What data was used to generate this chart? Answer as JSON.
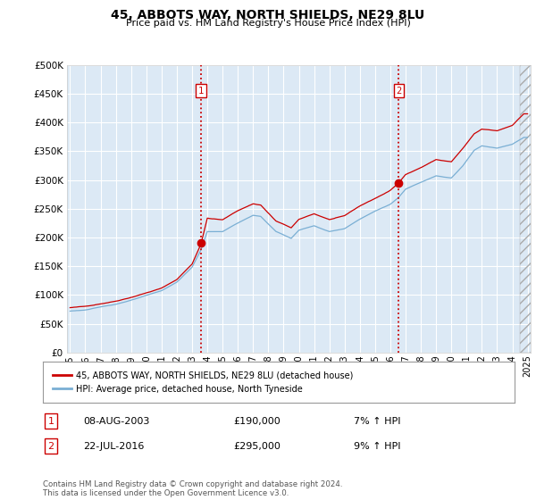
{
  "title": "45, ABBOTS WAY, NORTH SHIELDS, NE29 8LU",
  "subtitle": "Price paid vs. HM Land Registry's House Price Index (HPI)",
  "ytick_values": [
    0,
    50000,
    100000,
    150000,
    200000,
    250000,
    300000,
    350000,
    400000,
    450000,
    500000
  ],
  "ylim": [
    0,
    500000
  ],
  "xmin_year": 1995,
  "xmax_year": 2025,
  "xticks": [
    1995,
    1996,
    1997,
    1998,
    1999,
    2000,
    2001,
    2002,
    2003,
    2004,
    2005,
    2006,
    2007,
    2008,
    2009,
    2010,
    2011,
    2012,
    2013,
    2014,
    2015,
    2016,
    2017,
    2018,
    2019,
    2020,
    2021,
    2022,
    2023,
    2024,
    2025
  ],
  "bg_color": "#dce9f5",
  "grid_color": "#ffffff",
  "red_line_color": "#cc0000",
  "blue_line_color": "#7aafd4",
  "vline_color": "#cc0000",
  "marker1_year": 2003.58,
  "marker1_value": 190000,
  "marker2_year": 2016.55,
  "marker2_value": 295000,
  "legend_label_red": "45, ABBOTS WAY, NORTH SHIELDS, NE29 8LU (detached house)",
  "legend_label_blue": "HPI: Average price, detached house, North Tyneside",
  "annotation1_date": "08-AUG-2003",
  "annotation1_price": "£190,000",
  "annotation1_hpi": "7% ↑ HPI",
  "annotation2_date": "22-JUL-2016",
  "annotation2_price": "£295,000",
  "annotation2_hpi": "9% ↑ HPI",
  "footer": "Contains HM Land Registry data © Crown copyright and database right 2024.\nThis data is licensed under the Open Government Licence v3.0.",
  "hatch_start_year": 2024.5
}
